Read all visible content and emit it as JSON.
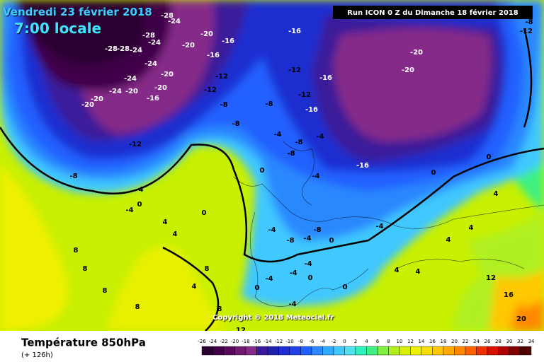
{
  "header": {
    "date": "Vendredi 23 février 2018",
    "time": "7:00 locale"
  },
  "run_info": "Run ICON 0 Z du Dimanche 18 février 2018",
  "copyright": "Copyright © 2018 Meteociel.fr",
  "footer": {
    "title": "Température 850hPa",
    "subtitle": "(+ 126h)"
  },
  "colorbar": {
    "ticks": [
      -26,
      -24,
      -22,
      -20,
      -18,
      -16,
      -14,
      -12,
      -10,
      -8,
      -6,
      -4,
      -2,
      0,
      2,
      4,
      6,
      8,
      10,
      12,
      14,
      16,
      18,
      20,
      22,
      24,
      26,
      28,
      30,
      32,
      34
    ],
    "colors": [
      "#2a0030",
      "#400048",
      "#5a0a5e",
      "#701872",
      "#852a88",
      "#3a1a9a",
      "#2020b0",
      "#1e2ed0",
      "#2040e8",
      "#2060ff",
      "#2c88ff",
      "#30a8ff",
      "#40c8ff",
      "#50e0f0",
      "#30f0c0",
      "#40f080",
      "#80f040",
      "#b0f020",
      "#d8f000",
      "#f0f000",
      "#f8e000",
      "#ffc800",
      "#ffa800",
      "#ff8800",
      "#ff6000",
      "#f03000",
      "#d81000",
      "#b00000",
      "#800000",
      "#500000"
    ]
  },
  "contour_labels": [
    "-28",
    "-24",
    "-28",
    "-24",
    "-20",
    "-28",
    "-28",
    "-24",
    "-24",
    "-20",
    "-16",
    "-16",
    "-12",
    "-12",
    "-20",
    "-24",
    "-20",
    "-24",
    "-20",
    "-20",
    "-16",
    "-20",
    "-16",
    "-12",
    "-16",
    "-12",
    "-16",
    "-8",
    "-8",
    "-8",
    "-12",
    "-20",
    "-20",
    "-16",
    "-8",
    "-4",
    "-4",
    "0",
    "0",
    "-4",
    "-8",
    "-8",
    "-4",
    "-4",
    "0",
    "0",
    "0",
    "4",
    "4",
    "4",
    "8",
    "8",
    "4",
    "8",
    "8",
    "12",
    "-4",
    "-8",
    "-4",
    "-8",
    "0",
    "-4",
    "0",
    "-4",
    "-4",
    "0",
    "-4",
    "4",
    "4",
    "12",
    "16",
    "20",
    "4",
    "4",
    "8",
    "8",
    "-4",
    "0",
    "-8",
    "-12"
  ]
}
